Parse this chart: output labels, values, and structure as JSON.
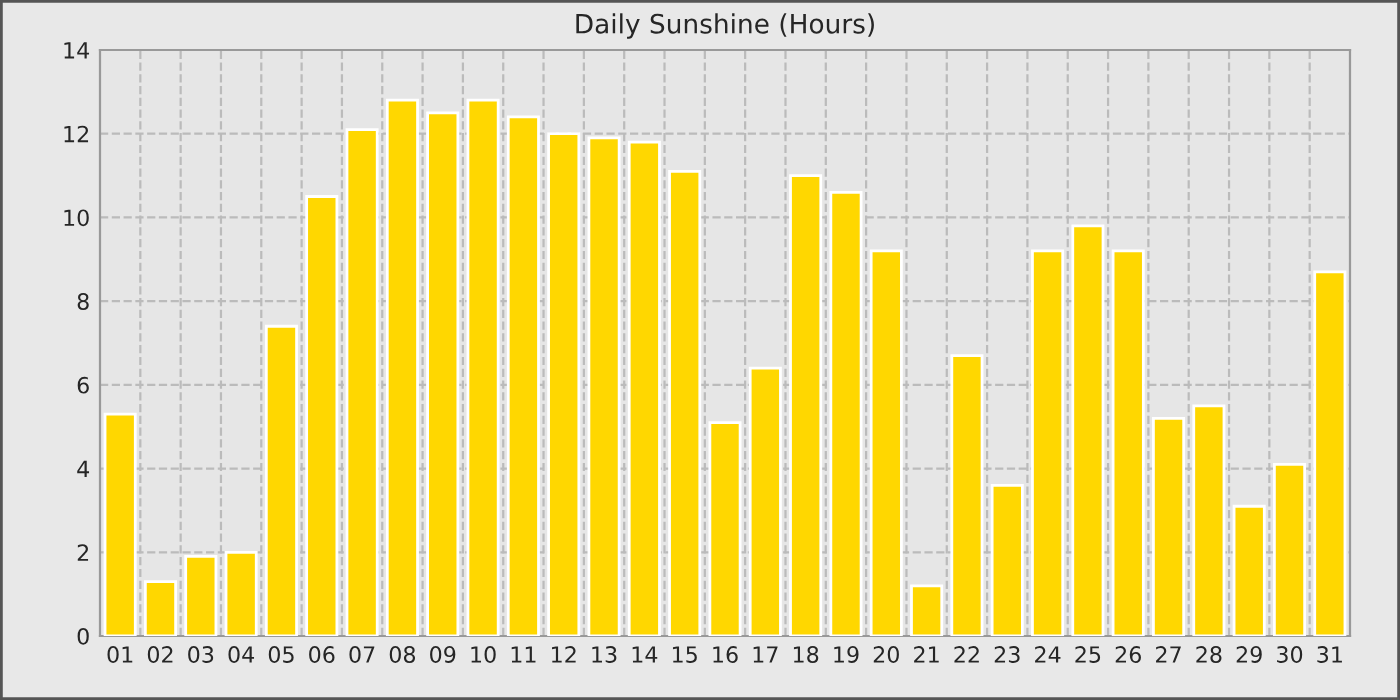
{
  "chart_data": {
    "type": "bar",
    "title": "Daily Sunshine (Hours)",
    "categories": [
      "01",
      "02",
      "03",
      "04",
      "05",
      "06",
      "07",
      "08",
      "09",
      "10",
      "11",
      "12",
      "13",
      "14",
      "15",
      "16",
      "17",
      "18",
      "19",
      "20",
      "21",
      "22",
      "23",
      "24",
      "25",
      "26",
      "27",
      "28",
      "29",
      "30",
      "31"
    ],
    "values": [
      5.3,
      1.3,
      1.9,
      2.0,
      7.4,
      10.5,
      12.1,
      12.8,
      12.5,
      12.8,
      12.4,
      12.0,
      11.9,
      11.8,
      11.1,
      5.1,
      6.4,
      11.0,
      10.6,
      9.2,
      1.2,
      6.7,
      3.6,
      9.2,
      9.8,
      9.2,
      5.2,
      5.5,
      3.1,
      4.1,
      8.7
    ],
    "color": "#ffd700",
    "ylim": [
      0,
      14
    ],
    "yticks": [
      0,
      2,
      4,
      6,
      8,
      10,
      12,
      14
    ],
    "grid": true
  }
}
